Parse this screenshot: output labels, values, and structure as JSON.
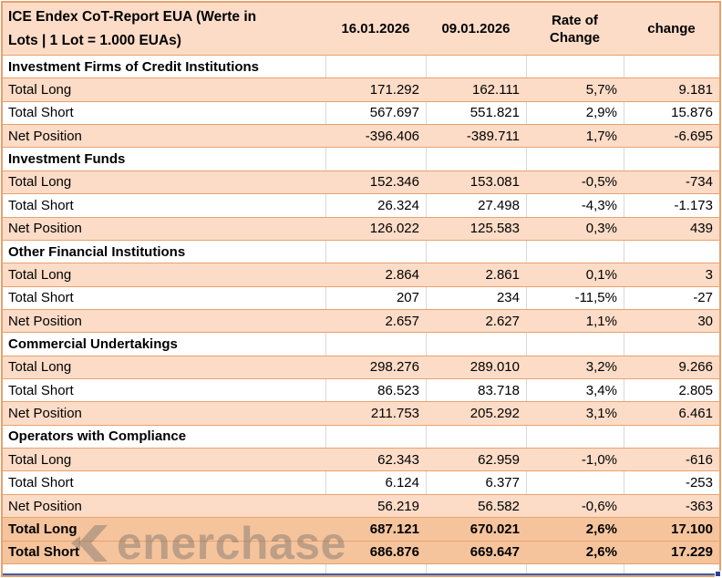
{
  "report": {
    "title": "ICE Endex CoT-Report EUA (Werte in Lots | 1 Lot = 1.000 EUAs)",
    "columns": [
      "16.01.2026",
      "09.01.2026",
      "Rate of Change",
      "change"
    ]
  },
  "sections": [
    {
      "name": "Investment Firms of Credit Institutions",
      "rows": [
        {
          "label": "Total Long",
          "values": [
            "171.292",
            "162.111",
            "5,7%",
            "9.181"
          ]
        },
        {
          "label": "Total Short",
          "values": [
            "567.697",
            "551.821",
            "2,9%",
            "15.876"
          ]
        },
        {
          "label": "Net Position",
          "values": [
            "-396.406",
            "-389.711",
            "1,7%",
            "-6.695"
          ]
        }
      ]
    },
    {
      "name": "Investment Funds",
      "rows": [
        {
          "label": "Total Long",
          "values": [
            "152.346",
            "153.081",
            "-0,5%",
            "-734"
          ]
        },
        {
          "label": "Total Short",
          "values": [
            "26.324",
            "27.498",
            "-4,3%",
            "-1.173"
          ]
        },
        {
          "label": "Net Position",
          "values": [
            "126.022",
            "125.583",
            "0,3%",
            "439"
          ]
        }
      ]
    },
    {
      "name": "Other Financial Institutions",
      "rows": [
        {
          "label": "Total Long",
          "values": [
            "2.864",
            "2.861",
            "0,1%",
            "3"
          ]
        },
        {
          "label": "Total Short",
          "values": [
            "207",
            "234",
            "-11,5%",
            "-27"
          ]
        },
        {
          "label": "Net Position",
          "values": [
            "2.657",
            "2.627",
            "1,1%",
            "30"
          ]
        }
      ]
    },
    {
      "name": "Commercial Undertakings",
      "rows": [
        {
          "label": "Total Long",
          "values": [
            "298.276",
            "289.010",
            "3,2%",
            "9.266"
          ]
        },
        {
          "label": "Total Short",
          "values": [
            "86.523",
            "83.718",
            "3,4%",
            "2.805"
          ]
        },
        {
          "label": "Net Position",
          "values": [
            "211.753",
            "205.292",
            "3,1%",
            "6.461"
          ]
        }
      ]
    },
    {
      "name": "Operators with Compliance",
      "rows": [
        {
          "label": "Total Long",
          "values": [
            "62.343",
            "62.959",
            "-1,0%",
            "-616"
          ]
        },
        {
          "label": "Total Short",
          "values": [
            "6.124",
            "6.377",
            "",
            "-253"
          ]
        },
        {
          "label": "Net Position",
          "values": [
            "56.219",
            "56.582",
            "-0,6%",
            "-363"
          ]
        }
      ]
    }
  ],
  "totals": [
    {
      "label": "Total Long",
      "values": [
        "687.121",
        "670.021",
        "2,6%",
        "17.100"
      ]
    },
    {
      "label": "Total Short",
      "values": [
        "686.876",
        "669.647",
        "2,6%",
        "17.229"
      ]
    }
  ],
  "watermark": {
    "text": "enerchase"
  },
  "colors": {
    "row_peach": "#fcdcc7",
    "row_total_peach": "#f5c49d",
    "border_orange": "#e8a16d",
    "grid_gray": "#d9d9d9",
    "selection_blue": "#3e5fa8"
  }
}
